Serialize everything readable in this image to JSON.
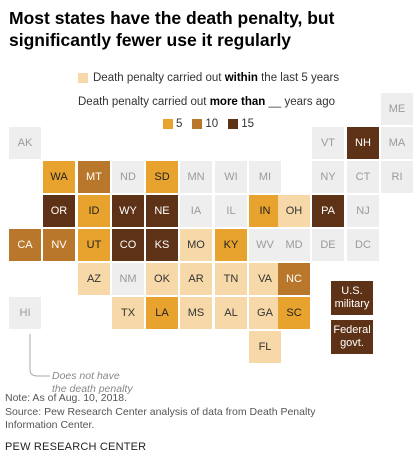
{
  "title": "Most states have the death penalty, but significantly fewer use it regularly",
  "legend": {
    "within_prefix": "Death penalty carried out ",
    "within_bold": "within",
    "within_suffix": " the last 5 years",
    "more_prefix": "Death penalty carried out ",
    "more_bold": "more than",
    "more_suffix": " __ years ago",
    "keys": [
      {
        "label": "5",
        "color": "#e8a32e"
      },
      {
        "label": "10",
        "color": "#b8772a"
      },
      {
        "label": "15",
        "color": "#5e3216"
      }
    ]
  },
  "colors": {
    "none": "#eeeeee",
    "within5": "#f7d8a8",
    "more5": "#e8a32e",
    "more10": "#b8772a",
    "more15": "#5e3216"
  },
  "states": [
    {
      "abbr": "ME",
      "cat": "none"
    },
    {
      "abbr": "AK",
      "cat": "none"
    },
    {
      "abbr": "VT",
      "cat": "none"
    },
    {
      "abbr": "NH",
      "cat": "more15"
    },
    {
      "abbr": "MA",
      "cat": "none"
    },
    {
      "abbr": "WA",
      "cat": "more5"
    },
    {
      "abbr": "MT",
      "cat": "more10"
    },
    {
      "abbr": "ND",
      "cat": "none"
    },
    {
      "abbr": "SD",
      "cat": "more5"
    },
    {
      "abbr": "MN",
      "cat": "none"
    },
    {
      "abbr": "WI",
      "cat": "none"
    },
    {
      "abbr": "MI",
      "cat": "none"
    },
    {
      "abbr": "NY",
      "cat": "none"
    },
    {
      "abbr": "CT",
      "cat": "none"
    },
    {
      "abbr": "RI",
      "cat": "none"
    },
    {
      "abbr": "OR",
      "cat": "more15"
    },
    {
      "abbr": "ID",
      "cat": "more5"
    },
    {
      "abbr": "WY",
      "cat": "more15"
    },
    {
      "abbr": "NE",
      "cat": "more15"
    },
    {
      "abbr": "IA",
      "cat": "none"
    },
    {
      "abbr": "IL",
      "cat": "none"
    },
    {
      "abbr": "IN",
      "cat": "more5"
    },
    {
      "abbr": "OH",
      "cat": "within5"
    },
    {
      "abbr": "PA",
      "cat": "more15"
    },
    {
      "abbr": "NJ",
      "cat": "none"
    },
    {
      "abbr": "CA",
      "cat": "more10"
    },
    {
      "abbr": "NV",
      "cat": "more10"
    },
    {
      "abbr": "UT",
      "cat": "more5"
    },
    {
      "abbr": "CO",
      "cat": "more15"
    },
    {
      "abbr": "KS",
      "cat": "more15"
    },
    {
      "abbr": "MO",
      "cat": "within5"
    },
    {
      "abbr": "KY",
      "cat": "more5"
    },
    {
      "abbr": "WV",
      "cat": "none"
    },
    {
      "abbr": "MD",
      "cat": "none"
    },
    {
      "abbr": "DE",
      "cat": "none"
    },
    {
      "abbr": "DC",
      "cat": "none"
    },
    {
      "abbr": "AZ",
      "cat": "within5"
    },
    {
      "abbr": "NM",
      "cat": "none"
    },
    {
      "abbr": "OK",
      "cat": "within5"
    },
    {
      "abbr": "AR",
      "cat": "within5"
    },
    {
      "abbr": "TN",
      "cat": "within5"
    },
    {
      "abbr": "VA",
      "cat": "within5"
    },
    {
      "abbr": "NC",
      "cat": "more10"
    },
    {
      "abbr": "HI",
      "cat": "none"
    },
    {
      "abbr": "TX",
      "cat": "within5"
    },
    {
      "abbr": "LA",
      "cat": "more5"
    },
    {
      "abbr": "MS",
      "cat": "within5"
    },
    {
      "abbr": "AL",
      "cat": "within5"
    },
    {
      "abbr": "GA",
      "cat": "within5"
    },
    {
      "abbr": "SC",
      "cat": "more5"
    },
    {
      "abbr": "FL",
      "cat": "within5"
    }
  ],
  "extra_boxes": [
    {
      "label_line1": "U.S.",
      "label_line2": "military",
      "cat": "more15"
    },
    {
      "label_line1": "Federal",
      "label_line2": "govt.",
      "cat": "more15"
    }
  ],
  "annotation": {
    "line1": "Does not have",
    "line2": "the death penalty"
  },
  "note": "Note: As of Aug. 10, 2018.",
  "source_line1": "Source: Pew Research Center analysis of data from Death Penalty",
  "source_line2": "Information Center.",
  "brand": "PEW RESEARCH CENTER"
}
